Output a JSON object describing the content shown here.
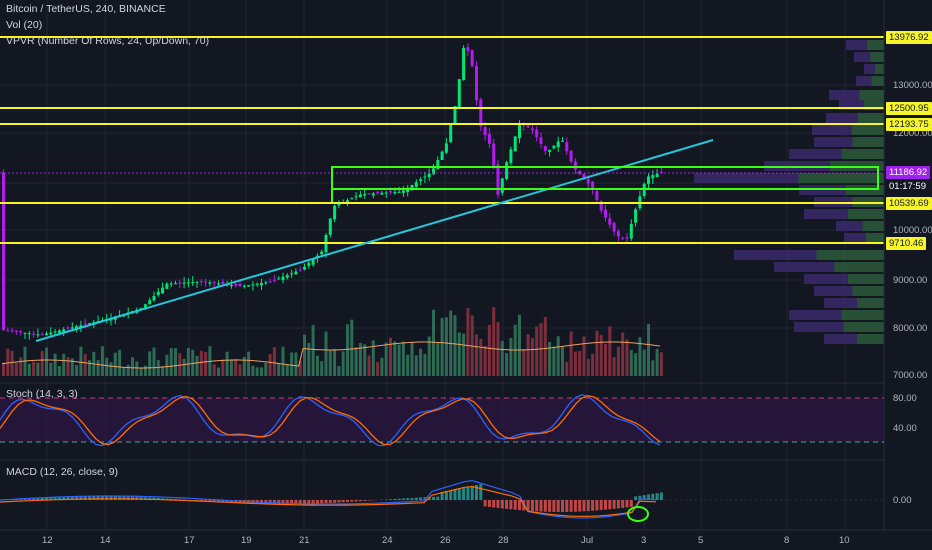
{
  "header": {
    "symbol": "Bitcoin / TetherUS, 240, BINANCE",
    "volume": "Vol (20)",
    "vpvr": "VPVR (Number Of Rows, 24, Up/Down, 70)"
  },
  "price_axis": {
    "ticks": [
      "13000.00",
      "12000.00",
      "10000.00",
      "9000.00",
      "8000.00",
      "7000.00"
    ],
    "tags": [
      {
        "label": "13976.92",
        "bg": "#f5f52a",
        "fg": "#131722"
      },
      {
        "label": "12500.95",
        "bg": "#f5f52a",
        "fg": "#131722"
      },
      {
        "label": "12193.75",
        "bg": "#f5f52a",
        "fg": "#131722"
      },
      {
        "label": "11186.92",
        "bg": "#a020f0",
        "fg": "#ffffff"
      },
      {
        "label": "01:17:59",
        "bg": "#131722",
        "fg": "#ffffff"
      },
      {
        "label": "10539.69",
        "bg": "#f5f52a",
        "fg": "#131722"
      },
      {
        "label": "9710.46",
        "bg": "#f5f52a",
        "fg": "#131722"
      }
    ]
  },
  "stoch": {
    "title": "Stoch (14, 3, 3)",
    "ticks": [
      "80.00",
      "40.00"
    ]
  },
  "macd": {
    "title": "MACD (12, 26, close, 9)",
    "ticks": [
      "0.00"
    ]
  },
  "time_axis": [
    "12",
    "14",
    "17",
    "19",
    "21",
    "24",
    "26",
    "28",
    "Jul",
    "3",
    "5",
    "8",
    "10"
  ],
  "colors": {
    "background": "#131722",
    "up_candle": "#00e676",
    "down_candle": "#b41bf0",
    "support_line": "#f5f52a",
    "trend_line": "#26c6da",
    "box": "#39ff14"
  }
}
